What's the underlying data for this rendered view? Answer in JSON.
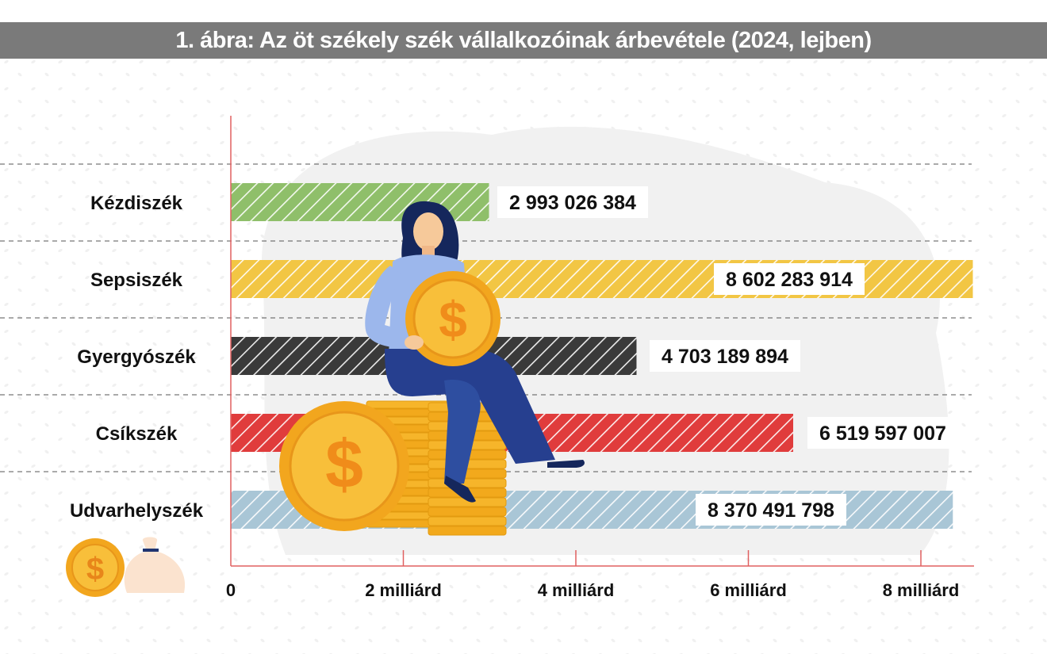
{
  "title": "1. ábra: Az öt székely szék vállalkozóinak árbevétele (2024, lejben)",
  "colors": {
    "title_bar": "#7a7a7a",
    "axis": "#e06060",
    "grid": "#555555"
  },
  "chart_data": {
    "type": "bar",
    "orientation": "horizontal",
    "categories": [
      "Kézdiszék",
      "Sepsiszék",
      "Gyergyószék",
      "Csíkszék",
      "Udvarhelyszék"
    ],
    "values": [
      2993026384,
      8602283914,
      4703189894,
      6519597007,
      8370491798
    ],
    "value_labels": [
      "2 993 026 384",
      "8 602 283 914",
      "4 703 189 894",
      "6 519 597 007",
      "8 370 491 798"
    ],
    "bar_colors": [
      "#8fbf6a",
      "#f2c644",
      "#3a3a3a",
      "#e03c3c",
      "#a9c6d6"
    ],
    "xticks": [
      0,
      2000000000,
      4000000000,
      6000000000,
      8000000000
    ],
    "xtick_labels": [
      "0",
      "2 milliárd",
      "4 milliárd",
      "6 milliárd",
      "8 milliárd"
    ],
    "xlim": [
      0,
      8600000000
    ],
    "bar_pattern": "diagonal-hatch",
    "grid": "dashed-horizontal-separators",
    "title": "1. ábra: Az öt székely szék vállalkozóinak árbevétele (2024, lejben)",
    "xlabel": "",
    "ylabel": ""
  },
  "decorations": [
    "woman-sitting-on-coins-illustration",
    "dollar-coin-icon",
    "money-bag-icon"
  ]
}
